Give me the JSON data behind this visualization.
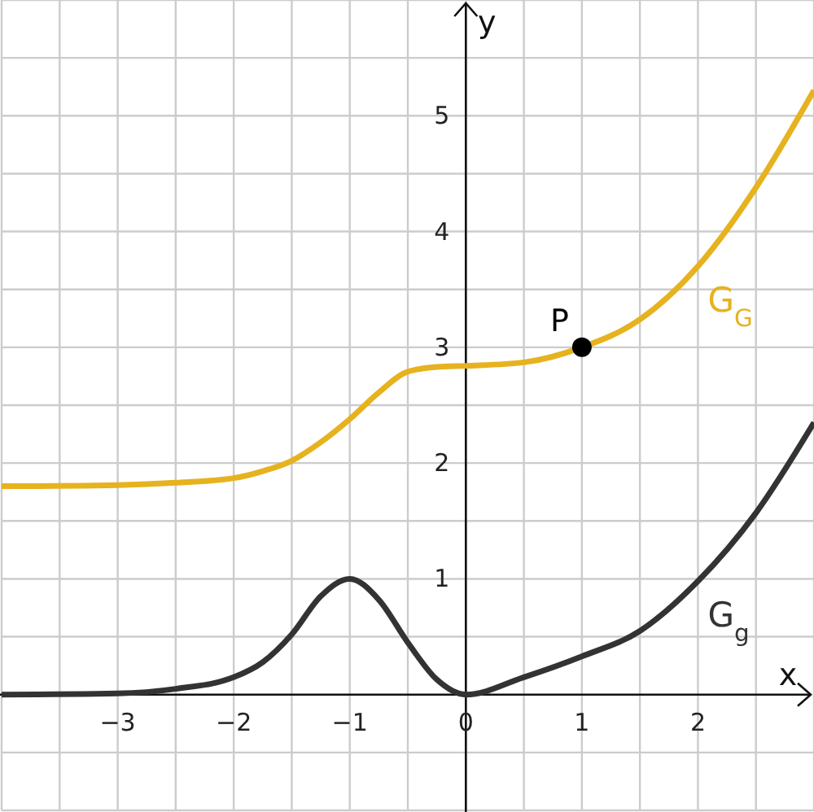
{
  "chart_data": {
    "type": "line",
    "xlabel": "x",
    "ylabel": "y",
    "xlim": [
      -4,
      3
    ],
    "ylim": [
      -1,
      6
    ],
    "xticks": [
      {
        "value": -3.5,
        "label": null
      },
      -3,
      {
        "value": -2.5,
        "label": null
      },
      -2,
      {
        "value": -1.5,
        "label": null
      },
      -1,
      {
        "value": -0.5,
        "label": null
      },
      0,
      {
        "value": 0.5,
        "label": null
      },
      1,
      {
        "value": 1.5,
        "label": null
      },
      2,
      {
        "value": 2.5,
        "label": null
      }
    ],
    "yticks": [
      {
        "value": -0.5,
        "label": null
      },
      {
        "value": 0.5,
        "label": null
      },
      1,
      {
        "value": 1.5,
        "label": null
      },
      2,
      {
        "value": 2.5,
        "label": null
      },
      3,
      {
        "value": 3.5,
        "label": null
      },
      4,
      {
        "value": 4.5,
        "label": null
      },
      5,
      {
        "value": 5.5,
        "label": null
      }
    ],
    "grid": true,
    "marker": "none",
    "line_style": "solid",
    "series": [
      {
        "name": "G$_{G}$",
        "color": "#e6b21e",
        "x": [
          -4,
          -3,
          -2.5,
          -2,
          -1.75,
          -1.5,
          -1.25,
          -1,
          -0.75,
          -0.5,
          -0.25,
          0,
          0.5,
          1,
          1.5,
          2,
          2.5,
          3
        ],
        "values": [
          1.8,
          1.81,
          1.83,
          1.87,
          1.93,
          2.02,
          2.18,
          2.38,
          2.61,
          2.79,
          2.83,
          2.84,
          2.87,
          3.0,
          3.24,
          3.7,
          4.38,
          5.22
        ]
      },
      {
        "name": "G$_{g}$",
        "color": "#333333",
        "x": [
          -4,
          -3,
          -2.5,
          -2,
          -1.75,
          -1.5,
          -1.25,
          -1,
          -0.75,
          -0.5,
          -0.25,
          0,
          0.5,
          1,
          1.5,
          2,
          2.5,
          3
        ],
        "values": [
          0,
          0.01,
          0.05,
          0.15,
          0.28,
          0.52,
          0.85,
          1.0,
          0.82,
          0.45,
          0.13,
          0,
          0.15,
          0.33,
          0.55,
          0.98,
          1.57,
          2.35
        ]
      },
      {
        "name": "P",
        "type": "scatter",
        "color": "#000000",
        "marker": "circle",
        "x": [
          1
        ],
        "values": [
          3
        ]
      }
    ]
  }
}
